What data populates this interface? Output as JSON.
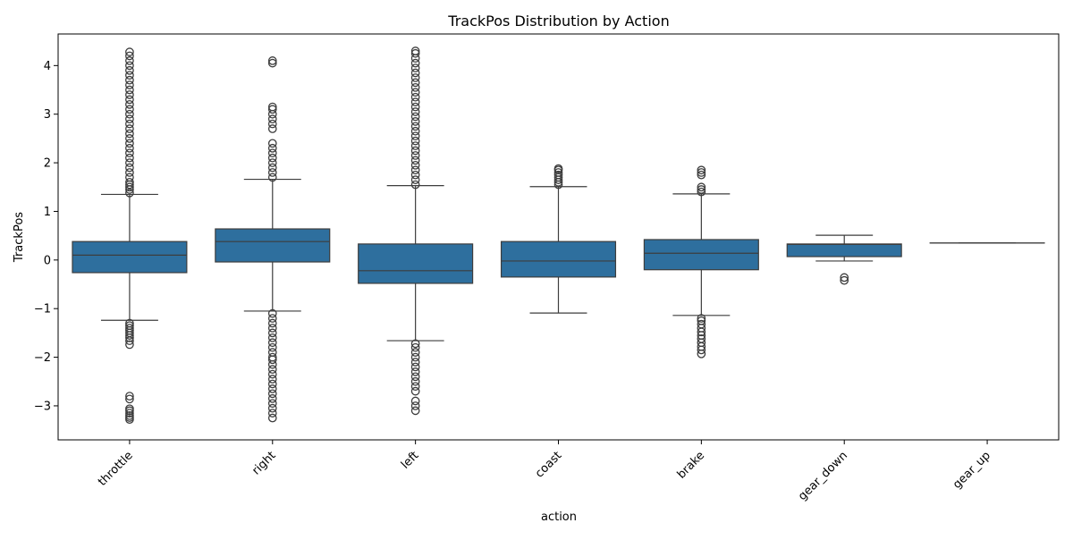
{
  "chart_data": {
    "type": "box",
    "title": "TrackPos Distribution by Action",
    "xlabel": "action",
    "ylabel": "TrackPos",
    "ylim": [
      -3.7,
      4.65
    ],
    "y_ticks": [
      -3,
      -2,
      -1,
      0,
      1,
      2,
      3,
      4
    ],
    "y_tick_labels": [
      "−3",
      "−2",
      "−1",
      "0",
      "1",
      "2",
      "3",
      "4"
    ],
    "categories": [
      "throttle",
      "right",
      "left",
      "coast",
      "brake",
      "gear_down",
      "gear_up"
    ],
    "grid": false,
    "legend": "none",
    "box_color": "#2e6f9e",
    "edge_color": "#3d3d3d",
    "boxes": [
      {
        "label": "throttle",
        "whisker_low": -1.24,
        "q1": -0.26,
        "median": 0.1,
        "q3": 0.38,
        "whisker_high": 1.35,
        "outliers": [
          -3.28,
          -3.24,
          -3.2,
          -3.15,
          -3.1,
          -3.06,
          -2.86,
          -2.8,
          -1.74,
          -1.66,
          -1.6,
          -1.55,
          -1.5,
          -1.45,
          -1.4,
          -1.35,
          -1.3,
          1.38,
          1.45,
          1.5,
          1.55,
          1.6,
          1.7,
          1.8,
          1.9,
          2.0,
          2.1,
          2.2,
          2.3,
          2.4,
          2.5,
          2.6,
          2.7,
          2.8,
          2.9,
          3.0,
          3.1,
          3.2,
          3.3,
          3.4,
          3.5,
          3.6,
          3.7,
          3.8,
          3.9,
          4.0,
          4.1,
          4.2,
          4.28
        ]
      },
      {
        "label": "right",
        "whisker_low": -1.05,
        "q1": -0.04,
        "median": 0.38,
        "q3": 0.64,
        "whisker_high": 1.66,
        "outliers": [
          -3.25,
          -3.15,
          -3.05,
          -2.95,
          -2.85,
          -2.75,
          -2.65,
          -2.55,
          -2.45,
          -2.35,
          -2.25,
          -2.15,
          -2.05,
          -2.0,
          -1.9,
          -1.8,
          -1.7,
          -1.6,
          -1.5,
          -1.4,
          -1.3,
          -1.2,
          -1.1,
          1.7,
          1.8,
          1.9,
          2.0,
          2.1,
          2.2,
          2.3,
          2.4,
          2.7,
          2.8,
          2.9,
          3.0,
          3.1,
          3.15,
          4.05,
          4.1
        ]
      },
      {
        "label": "left",
        "whisker_low": -1.66,
        "q1": -0.48,
        "median": -0.22,
        "q3": 0.33,
        "whisker_high": 1.53,
        "outliers": [
          -3.1,
          -3.0,
          -2.9,
          -2.7,
          -2.6,
          -2.5,
          -2.4,
          -2.3,
          -2.2,
          -2.1,
          -2.0,
          -1.9,
          -1.8,
          -1.72,
          1.55,
          1.65,
          1.75,
          1.85,
          1.95,
          2.05,
          2.15,
          2.25,
          2.35,
          2.45,
          2.55,
          2.65,
          2.75,
          2.85,
          2.95,
          3.05,
          3.15,
          3.25,
          3.35,
          3.45,
          3.55,
          3.65,
          3.75,
          3.85,
          3.95,
          4.05,
          4.15,
          4.25,
          4.3
        ]
      },
      {
        "label": "coast",
        "whisker_low": -1.09,
        "q1": -0.35,
        "median": -0.02,
        "q3": 0.38,
        "whisker_high": 1.51,
        "outliers": [
          1.55,
          1.6,
          1.65,
          1.7,
          1.75,
          1.8,
          1.85,
          1.88
        ]
      },
      {
        "label": "brake",
        "whisker_low": -1.14,
        "q1": -0.2,
        "median": 0.14,
        "q3": 0.42,
        "whisker_high": 1.36,
        "outliers": [
          -1.93,
          -1.85,
          -1.78,
          -1.7,
          -1.62,
          -1.55,
          -1.48,
          -1.4,
          -1.32,
          -1.25,
          -1.2,
          1.4,
          1.45,
          1.5,
          1.75,
          1.8,
          1.85
        ]
      },
      {
        "label": "gear_down",
        "whisker_low": -0.02,
        "q1": 0.07,
        "median": 0.32,
        "q3": 0.33,
        "whisker_high": 0.51,
        "outliers": [
          -0.42,
          -0.36
        ]
      },
      {
        "label": "gear_up",
        "whisker_low": 0.35,
        "q1": 0.35,
        "median": 0.35,
        "q3": 0.35,
        "whisker_high": 0.35,
        "outliers": []
      }
    ]
  }
}
